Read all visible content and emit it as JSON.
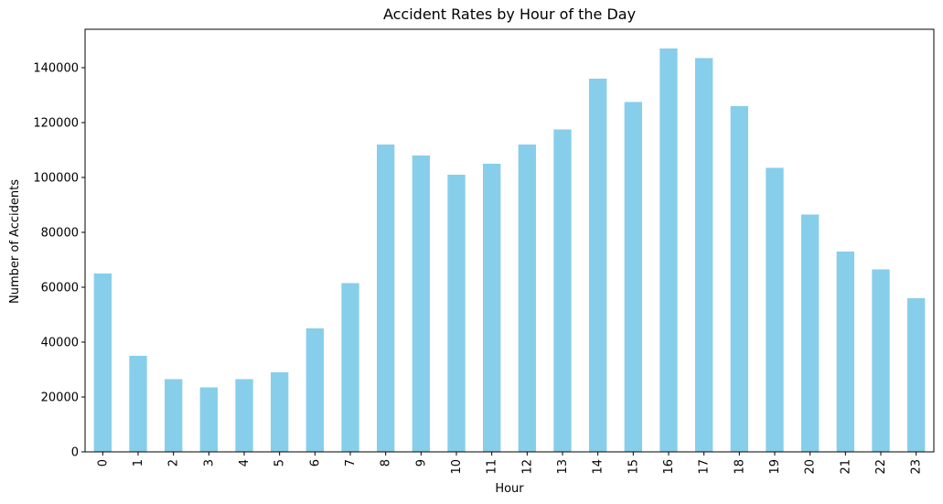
{
  "chart_data": {
    "type": "bar",
    "title": "Accident Rates by Hour of the Day",
    "xlabel": "Hour",
    "ylabel": "Number of Accidents",
    "categories": [
      "0",
      "1",
      "2",
      "3",
      "4",
      "5",
      "6",
      "7",
      "8",
      "9",
      "10",
      "11",
      "12",
      "13",
      "14",
      "15",
      "16",
      "17",
      "18",
      "19",
      "20",
      "21",
      "22",
      "23"
    ],
    "values": [
      65000,
      35000,
      26500,
      23500,
      26500,
      29000,
      45000,
      61500,
      112000,
      108000,
      101000,
      105000,
      112000,
      117500,
      136000,
      127500,
      147000,
      143500,
      126000,
      103500,
      86500,
      73000,
      66500,
      56000
    ],
    "ylim": [
      0,
      154000
    ],
    "yticks": [
      0,
      20000,
      40000,
      60000,
      80000,
      100000,
      120000,
      140000
    ],
    "ytick_labels": [
      "0",
      "20000",
      "40000",
      "60000",
      "80000",
      "100000",
      "120000",
      "140000"
    ],
    "bar_color": "#87CEEB",
    "grid": false,
    "legend": "none"
  }
}
